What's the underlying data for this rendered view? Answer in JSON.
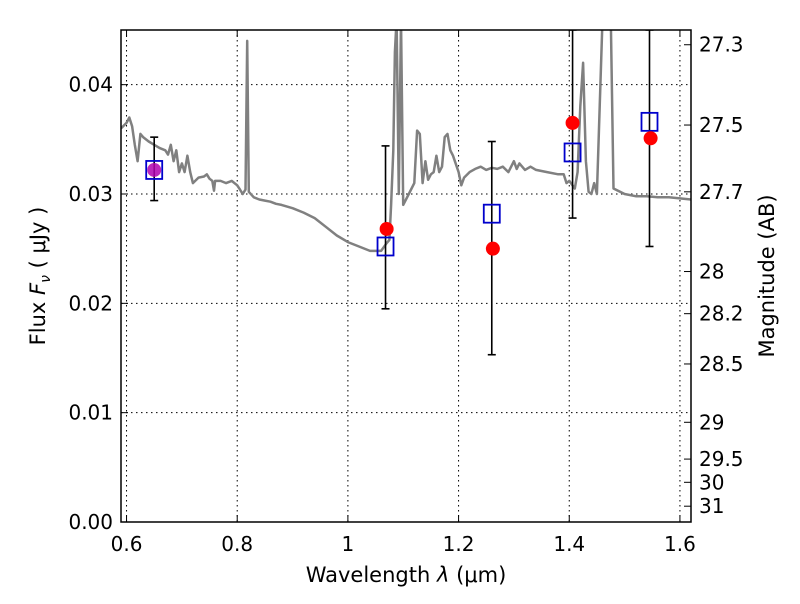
{
  "chart_data": {
    "type": "scatter",
    "xlabel": {
      "prefix": "Wavelength  ",
      "symbol": "λ",
      "unit": " (μm)"
    },
    "ylabel": {
      "prefix": "Flux  ",
      "symbol": "F",
      "sub": "ν",
      "unit": "  ( μJy )"
    },
    "y2label": "Magnitude (AB)",
    "xlim": [
      0.59,
      1.62
    ],
    "ylim": [
      0.0,
      0.045
    ],
    "grid": true,
    "x_ticks": [
      {
        "value": 0.6,
        "label": "0.6"
      },
      {
        "value": 0.8,
        "label": "0.8"
      },
      {
        "value": 1.0,
        "label": "1"
      },
      {
        "value": 1.2,
        "label": "1.2"
      },
      {
        "value": 1.4,
        "label": "1.4"
      },
      {
        "value": 1.6,
        "label": "1.6"
      }
    ],
    "y_ticks": [
      {
        "value": 0.0,
        "label": "0.00"
      },
      {
        "value": 0.01,
        "label": "0.01"
      },
      {
        "value": 0.02,
        "label": "0.02"
      },
      {
        "value": 0.03,
        "label": "0.03"
      },
      {
        "value": 0.04,
        "label": "0.04"
      }
    ],
    "y2_ticks": [
      {
        "value": 27.3,
        "label": "27.3"
      },
      {
        "value": 27.5,
        "label": "27.5"
      },
      {
        "value": 27.7,
        "label": "27.7"
      },
      {
        "value": 28.0,
        "label": "28"
      },
      {
        "value": 28.2,
        "label": "28.2"
      },
      {
        "value": 28.5,
        "label": "28.5"
      },
      {
        "value": 29.0,
        "label": "29"
      },
      {
        "value": 29.5,
        "label": "29.5"
      },
      {
        "value": 30.0,
        "label": "30"
      },
      {
        "value": 31.0,
        "label": "31"
      }
    ],
    "series": [
      {
        "kind": "line",
        "color": "#808080",
        "points": [
          [
            0.59,
            0.036
          ],
          [
            0.6,
            0.0365
          ],
          [
            0.605,
            0.037
          ],
          [
            0.61,
            0.0362
          ],
          [
            0.615,
            0.0345
          ],
          [
            0.62,
            0.033
          ],
          [
            0.625,
            0.0355
          ],
          [
            0.63,
            0.0352
          ],
          [
            0.64,
            0.0348
          ],
          [
            0.65,
            0.0345
          ],
          [
            0.66,
            0.0342
          ],
          [
            0.67,
            0.034
          ],
          [
            0.675,
            0.0336
          ],
          [
            0.68,
            0.0345
          ],
          [
            0.685,
            0.033
          ],
          [
            0.69,
            0.034
          ],
          [
            0.695,
            0.032
          ],
          [
            0.7,
            0.0328
          ],
          [
            0.705,
            0.032
          ],
          [
            0.71,
            0.0335
          ],
          [
            0.715,
            0.032
          ],
          [
            0.72,
            0.031
          ],
          [
            0.73,
            0.0315
          ],
          [
            0.74,
            0.0316
          ],
          [
            0.745,
            0.0318
          ],
          [
            0.75,
            0.0314
          ],
          [
            0.755,
            0.0312
          ],
          [
            0.758,
            0.0303
          ],
          [
            0.76,
            0.0312
          ],
          [
            0.77,
            0.0312
          ],
          [
            0.78,
            0.031
          ],
          [
            0.79,
            0.0312
          ],
          [
            0.8,
            0.0308
          ],
          [
            0.805,
            0.0304
          ],
          [
            0.81,
            0.03
          ],
          [
            0.815,
            0.0304
          ],
          [
            0.818,
            0.044
          ],
          [
            0.821,
            0.0302
          ],
          [
            0.83,
            0.0297
          ],
          [
            0.84,
            0.0295
          ],
          [
            0.85,
            0.0294
          ],
          [
            0.86,
            0.0293
          ],
          [
            0.87,
            0.0291
          ],
          [
            0.88,
            0.029
          ],
          [
            0.9,
            0.0287
          ],
          [
            0.92,
            0.0283
          ],
          [
            0.94,
            0.0278
          ],
          [
            0.96,
            0.027
          ],
          [
            0.98,
            0.0262
          ],
          [
            1.0,
            0.0256
          ],
          [
            1.02,
            0.0252
          ],
          [
            1.04,
            0.0248
          ],
          [
            1.06,
            0.0248
          ],
          [
            1.07,
            0.0255
          ],
          [
            1.075,
            0.0258
          ],
          [
            1.078,
            0.029
          ],
          [
            1.082,
            0.034
          ],
          [
            1.085,
            0.043
          ],
          [
            1.088,
            0.046
          ],
          [
            1.092,
            0.03
          ],
          [
            1.096,
            0.046
          ],
          [
            1.1,
            0.029
          ],
          [
            1.11,
            0.03
          ],
          [
            1.12,
            0.031
          ],
          [
            1.125,
            0.0358
          ],
          [
            1.13,
            0.0355
          ],
          [
            1.135,
            0.031
          ],
          [
            1.14,
            0.033
          ],
          [
            1.145,
            0.0313
          ],
          [
            1.15,
            0.0318
          ],
          [
            1.155,
            0.032
          ],
          [
            1.16,
            0.0335
          ],
          [
            1.165,
            0.032
          ],
          [
            1.17,
            0.0325
          ],
          [
            1.175,
            0.0352
          ],
          [
            1.18,
            0.0355
          ],
          [
            1.185,
            0.034
          ],
          [
            1.19,
            0.0335
          ],
          [
            1.2,
            0.032
          ],
          [
            1.205,
            0.0308
          ],
          [
            1.21,
            0.0315
          ],
          [
            1.22,
            0.032
          ],
          [
            1.23,
            0.0323
          ],
          [
            1.24,
            0.0325
          ],
          [
            1.25,
            0.0322
          ],
          [
            1.26,
            0.0324
          ],
          [
            1.27,
            0.0323
          ],
          [
            1.28,
            0.0325
          ],
          [
            1.29,
            0.032
          ],
          [
            1.3,
            0.033
          ],
          [
            1.305,
            0.0323
          ],
          [
            1.31,
            0.0328
          ],
          [
            1.32,
            0.0322
          ],
          [
            1.33,
            0.0325
          ],
          [
            1.34,
            0.0322
          ],
          [
            1.36,
            0.032
          ],
          [
            1.38,
            0.0318
          ],
          [
            1.39,
            0.0318
          ],
          [
            1.395,
            0.031
          ],
          [
            1.4,
            0.0312
          ],
          [
            1.41,
            0.0305
          ],
          [
            1.415,
            0.032
          ],
          [
            1.42,
            0.038
          ],
          [
            1.425,
            0.042
          ],
          [
            1.43,
            0.033
          ],
          [
            1.435,
            0.0302
          ],
          [
            1.44,
            0.03
          ],
          [
            1.445,
            0.031
          ],
          [
            1.45,
            0.03
          ],
          [
            1.455,
            0.038
          ],
          [
            1.46,
            0.046
          ],
          [
            1.47,
            0.046
          ],
          [
            1.475,
            0.046
          ],
          [
            1.48,
            0.0305
          ],
          [
            1.5,
            0.03
          ],
          [
            1.52,
            0.0298
          ],
          [
            1.54,
            0.0298
          ],
          [
            1.56,
            0.0297
          ],
          [
            1.58,
            0.0297
          ],
          [
            1.6,
            0.0296
          ],
          [
            1.62,
            0.0295
          ]
        ]
      },
      {
        "kind": "errorbar",
        "color": "#000000",
        "points": [
          {
            "x": 0.65,
            "y": 0.0322,
            "low": 0.0294,
            "high": 0.0352
          },
          {
            "x": 1.068,
            "y": 0.0252,
            "low": 0.0195,
            "high": 0.0344
          },
          {
            "x": 1.26,
            "y": 0.0282,
            "low": 0.0153,
            "high": 0.0348
          },
          {
            "x": 1.406,
            "y": 0.0338,
            "low": 0.0278,
            "high": 0.045
          },
          {
            "x": 1.545,
            "y": 0.0366,
            "low": 0.0252,
            "high": 0.045
          }
        ]
      },
      {
        "kind": "marker-square",
        "color": "#0000cc",
        "points": [
          [
            0.65,
            0.0322
          ],
          [
            1.068,
            0.0252
          ],
          [
            1.26,
            0.0282
          ],
          [
            1.406,
            0.0338
          ],
          [
            1.545,
            0.0366
          ]
        ]
      },
      {
        "kind": "marker-circle",
        "color": "#ff0000",
        "points": [
          [
            0.65,
            0.0322
          ],
          [
            1.07,
            0.0268
          ],
          [
            1.262,
            0.025
          ],
          [
            1.406,
            0.0365
          ],
          [
            1.547,
            0.0351
          ]
        ]
      }
    ]
  }
}
